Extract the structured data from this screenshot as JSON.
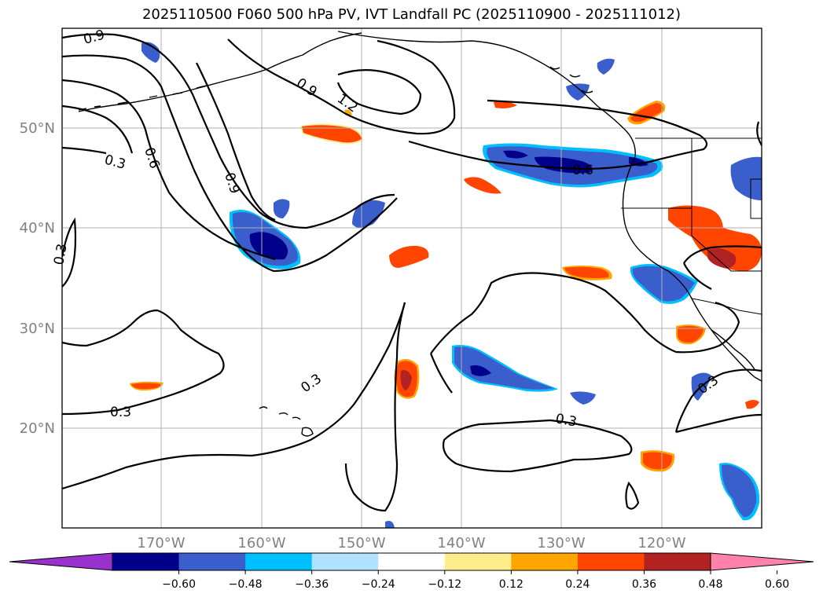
{
  "title": "2025110500 F060 500 hPa PV, IVT Landfall PC (2025110900 - 2025111012)",
  "map": {
    "type": "filled-contour map",
    "extent_lon": [
      -180,
      -110
    ],
    "extent_lat": [
      10,
      60
    ],
    "lon_ticks": [
      "170°W",
      "160°W",
      "150°W",
      "140°W",
      "130°W",
      "120°W"
    ],
    "lat_ticks": [
      "50°N",
      "40°N",
      "30°N",
      "20°N"
    ],
    "gridlines": true,
    "contour_labels": [
      "0.9",
      "0.9",
      "1.2",
      "0.6",
      "0.3",
      "0.9",
      "0.3",
      "0.6",
      "0.3",
      "0.3",
      "0.3",
      "0.3"
    ]
  },
  "colorbar": {
    "ticks": [
      "−0.60",
      "−0.48",
      "−0.36",
      "−0.24",
      "−0.12",
      "0.12",
      "0.24",
      "0.36",
      "0.48",
      "0.60"
    ],
    "colors": [
      "#9932cc",
      "#00008b",
      "#3a5fcd",
      "#00bfff",
      "#b0e2ff",
      "#ffffff",
      "#ffec8b",
      "#ffa500",
      "#ff4500",
      "#b22222",
      "#ff82ab"
    ]
  }
}
